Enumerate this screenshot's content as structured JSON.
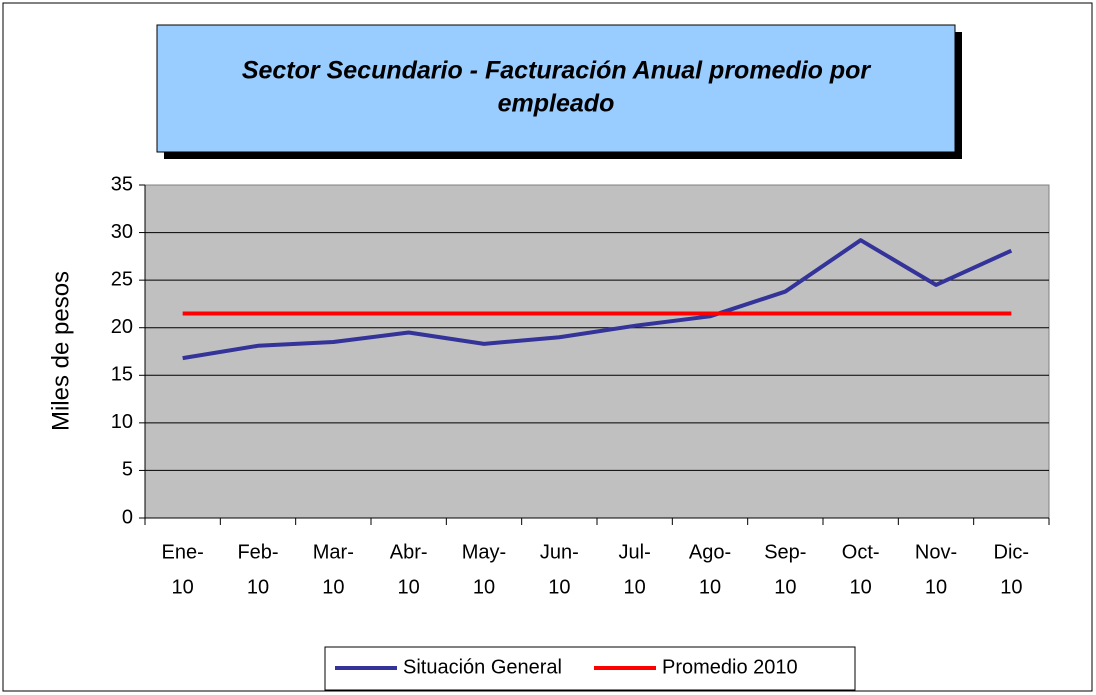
{
  "chart_data": {
    "type": "line",
    "title": "Sector Secundario - Facturación Anual promedio por empleado",
    "y_label": "Miles de pesos",
    "categories": [
      "Ene-10",
      "Feb-10",
      "Mar-10",
      "Abr-10",
      "May-10",
      "Jun-10",
      "Jul-10",
      "Ago-10",
      "Sep-10",
      "Oct-10",
      "Nov-10",
      "Dic-10"
    ],
    "series": [
      {
        "name": "Situación General",
        "color": "#333399",
        "values": [
          16.8,
          18.1,
          18.5,
          19.5,
          18.3,
          19.0,
          20.2,
          21.2,
          23.8,
          29.2,
          24.5,
          28.1
        ]
      },
      {
        "name": "Promedio 2010",
        "color": "#ff0000",
        "values": [
          21.5,
          21.5,
          21.5,
          21.5,
          21.5,
          21.5,
          21.5,
          21.5,
          21.5,
          21.5,
          21.5,
          21.5
        ]
      }
    ],
    "ylim": [
      0,
      35
    ],
    "yticks": [
      0,
      5,
      10,
      15,
      20,
      25,
      30,
      35
    ],
    "grid": true,
    "legend": "bottom"
  }
}
